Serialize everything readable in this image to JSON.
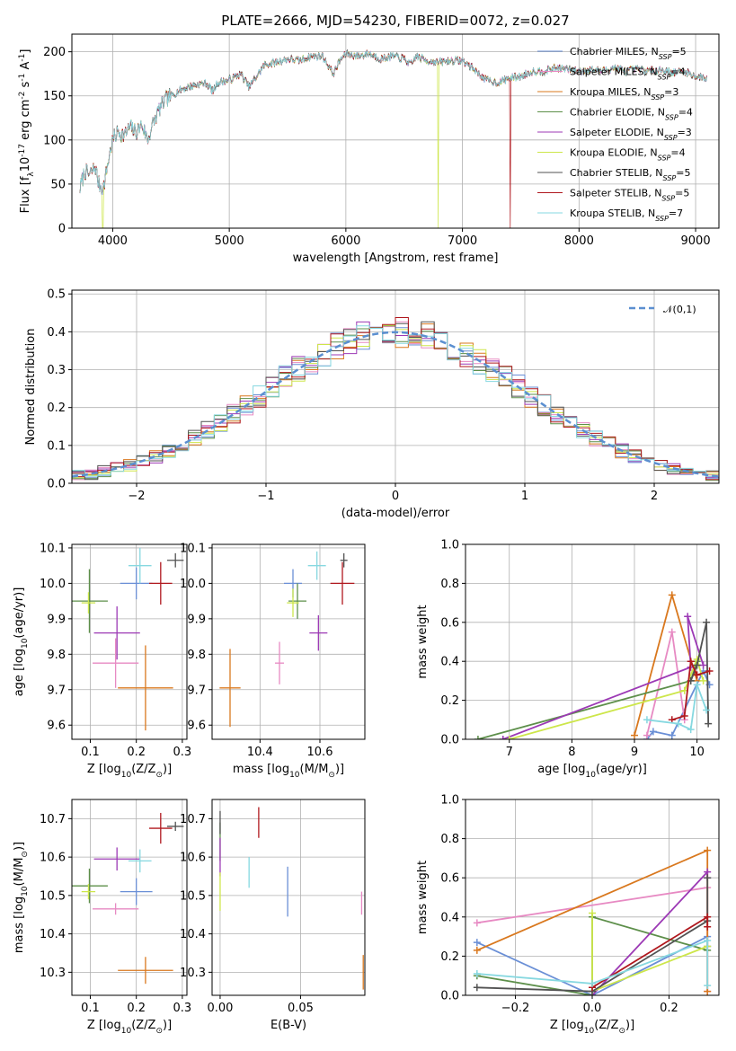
{
  "figure": {
    "title": "PLATE=2666, MJD=54230, FIBERID=0072, z=0.027"
  },
  "colors": {
    "Chabrier MILES": "#6a8fd6",
    "Salpeter MILES": "#e78ac3",
    "Kroupa MILES": "#d9781e",
    "Chabrier ELODIE": "#5d8f4a",
    "Salpeter ELODIE": "#9c39b5",
    "Kroupa ELODIE": "#cde64a",
    "Chabrier STELIB": "#525252",
    "Salpeter STELIB": "#b0181e",
    "Kroupa STELIB": "#86d8e0"
  },
  "chart_data": [
    {
      "id": "spectrum",
      "type": "line",
      "xlabel": "wavelength [Angstrom, rest frame]",
      "ylabel": "Flux [f$_\\lambda$10$^{-17}$ erg cm$^{-2}$ s$^{-1}$ A$^{-1}$]",
      "xlim": [
        3650,
        9200
      ],
      "ylim": [
        0,
        220
      ],
      "xticks": [
        "4000",
        "5000",
        "6000",
        "7000",
        "8000",
        "9000"
      ],
      "yticks": [
        "0",
        "50",
        "100",
        "150",
        "200"
      ],
      "legend_position": "top-right",
      "legend": [
        {
          "name": "Chabrier MILES",
          "nssp": "5"
        },
        {
          "name": "Salpeter MILES",
          "nssp": "4"
        },
        {
          "name": "Kroupa MILES",
          "nssp": "3"
        },
        {
          "name": "Chabrier ELODIE",
          "nssp": "4"
        },
        {
          "name": "Salpeter ELODIE",
          "nssp": "3"
        },
        {
          "name": "Kroupa ELODIE",
          "nssp": "4"
        },
        {
          "name": "Chabrier STELIB",
          "nssp": "5"
        },
        {
          "name": "Salpeter STELIB",
          "nssp": "5"
        },
        {
          "name": "Kroupa STELIB",
          "nssp": "7"
        }
      ],
      "continuum": [
        [
          3720,
          45
        ],
        [
          3760,
          65
        ],
        [
          3800,
          60
        ],
        [
          3850,
          70
        ],
        [
          3880,
          50
        ],
        [
          3920,
          45
        ],
        [
          3960,
          75
        ],
        [
          4000,
          100
        ],
        [
          4050,
          110
        ],
        [
          4100,
          105
        ],
        [
          4150,
          115
        ],
        [
          4200,
          108
        ],
        [
          4250,
          118
        ],
        [
          4300,
          100
        ],
        [
          4350,
          120
        ],
        [
          4400,
          135
        ],
        [
          4450,
          145
        ],
        [
          4500,
          150
        ],
        [
          4600,
          158
        ],
        [
          4700,
          162
        ],
        [
          4800,
          165
        ],
        [
          4860,
          155
        ],
        [
          4900,
          165
        ],
        [
          5000,
          168
        ],
        [
          5100,
          175
        ],
        [
          5170,
          160
        ],
        [
          5250,
          175
        ],
        [
          5300,
          185
        ],
        [
          5400,
          188
        ],
        [
          5500,
          192
        ],
        [
          5600,
          190
        ],
        [
          5700,
          195
        ],
        [
          5800,
          195
        ],
        [
          5893,
          175
        ],
        [
          5950,
          190
        ],
        [
          6000,
          198
        ],
        [
          6100,
          195
        ],
        [
          6200,
          198
        ],
        [
          6300,
          192
        ],
        [
          6400,
          195
        ],
        [
          6500,
          192
        ],
        [
          6563,
          185
        ],
        [
          6600,
          195
        ],
        [
          6700,
          190
        ],
        [
          6800,
          188
        ],
        [
          6900,
          190
        ],
        [
          7000,
          190
        ],
        [
          7100,
          180
        ],
        [
          7200,
          168
        ],
        [
          7300,
          165
        ],
        [
          7400,
          170
        ],
        [
          7500,
          172
        ],
        [
          7600,
          178
        ],
        [
          7700,
          178
        ],
        [
          7800,
          182
        ],
        [
          7900,
          180
        ],
        [
          8000,
          178
        ],
        [
          8100,
          180
        ],
        [
          8200,
          178
        ],
        [
          8300,
          182
        ],
        [
          8400,
          178
        ],
        [
          8500,
          180
        ],
        [
          8600,
          178
        ],
        [
          8700,
          180
        ],
        [
          8800,
          176
        ],
        [
          8900,
          178
        ],
        [
          9000,
          172
        ],
        [
          9100,
          170
        ]
      ],
      "dropouts": [
        {
          "x": 3915,
          "series": "Kroupa ELODIE"
        },
        {
          "x": 6790,
          "series": "Kroupa ELODIE"
        },
        {
          "x": 7410,
          "series": "Salpeter STELIB"
        }
      ]
    },
    {
      "id": "residuals",
      "type": "bar",
      "xlabel": "(data-model)/error",
      "ylabel": "Normed distribution",
      "xlim": [
        -2.5,
        2.5
      ],
      "ylim": [
        0,
        0.51
      ],
      "xticks": [
        "−2",
        "−1",
        "0",
        "1",
        "2"
      ],
      "yticks": [
        "0.0",
        "0.1",
        "0.2",
        "0.3",
        "0.4",
        "0.5"
      ],
      "legend_position": "top-right",
      "reference": {
        "name": "𝒩(0,1)",
        "mu": 0,
        "sigma": 1
      },
      "bin_width": 0.1
    },
    {
      "id": "Z_age",
      "type": "scatter",
      "xlabel": "Z [log$_{10}$(Z/Z$_\\odot$)]",
      "ylabel": "age  [log$_{10}$(age/yr)]",
      "xlim": [
        0.06,
        0.31
      ],
      "ylim": [
        9.56,
        10.11
      ],
      "xticks": [
        "0.1",
        "0.2",
        "0.3"
      ],
      "yticks": [
        "9.6",
        "9.7",
        "9.8",
        "9.9",
        "10.0",
        "10.1"
      ],
      "points": [
        {
          "s": "Chabrier MILES",
          "x": 0.2,
          "xerr": 0.035,
          "y": 10.0,
          "yerr": 0.045
        },
        {
          "s": "Salpeter MILES",
          "x": 0.155,
          "xerr": 0.05,
          "y": 9.775,
          "yerr": 0.07
        },
        {
          "s": "Kroupa MILES",
          "x": 0.22,
          "xerr": 0.06,
          "y": 9.705,
          "yerr": 0.12
        },
        {
          "s": "Chabrier ELODIE",
          "x": 0.098,
          "xerr": 0.04,
          "y": 9.95,
          "yerr": 0.09
        },
        {
          "s": "Salpeter ELODIE",
          "x": 0.158,
          "xerr": 0.05,
          "y": 9.86,
          "yerr": 0.075
        },
        {
          "s": "Kroupa ELODIE",
          "x": 0.096,
          "xerr": 0.015,
          "y": 9.945,
          "yerr": 0.03
        },
        {
          "s": "Chabrier STELIB",
          "x": 0.285,
          "xerr": 0.018,
          "y": 10.065,
          "yerr": 0.02
        },
        {
          "s": "Salpeter STELIB",
          "x": 0.253,
          "xerr": 0.025,
          "y": 10.0,
          "yerr": 0.06
        },
        {
          "s": "Kroupa STELIB",
          "x": 0.208,
          "xerr": 0.025,
          "y": 10.05,
          "yerr": 0.05
        }
      ]
    },
    {
      "id": "mass_age",
      "type": "scatter",
      "xlabel": "mass [log$_{10}$(M/M$_\\odot$)]",
      "ylabel": "",
      "xlim": [
        10.24,
        10.75
      ],
      "ylim": [
        9.56,
        10.11
      ],
      "xticks": [
        "10.4",
        "10.6"
      ],
      "yticks": [
        "9.6",
        "9.7",
        "9.8",
        "9.9",
        "10.0",
        "10.1"
      ],
      "points": [
        {
          "s": "Chabrier MILES",
          "x": 10.51,
          "xerr": 0.03,
          "y": 10.0,
          "yerr": 0.04
        },
        {
          "s": "Salpeter MILES",
          "x": 10.465,
          "xerr": 0.015,
          "y": 9.775,
          "yerr": 0.06
        },
        {
          "s": "Kroupa MILES",
          "x": 10.3,
          "xerr": 0.035,
          "y": 9.705,
          "yerr": 0.11
        },
        {
          "s": "Chabrier ELODIE",
          "x": 10.525,
          "xerr": 0.03,
          "y": 9.95,
          "yerr": 0.05
        },
        {
          "s": "Salpeter ELODIE",
          "x": 10.595,
          "xerr": 0.03,
          "y": 9.86,
          "yerr": 0.05
        },
        {
          "s": "Kroupa ELODIE",
          "x": 10.51,
          "xerr": 0.02,
          "y": 9.945,
          "yerr": 0.04
        },
        {
          "s": "Chabrier STELIB",
          "x": 10.68,
          "xerr": 0.012,
          "y": 10.065,
          "yerr": 0.02
        },
        {
          "s": "Salpeter STELIB",
          "x": 10.675,
          "xerr": 0.04,
          "y": 10.0,
          "yerr": 0.06
        },
        {
          "s": "Kroupa STELIB",
          "x": 10.59,
          "xerr": 0.03,
          "y": 10.05,
          "yerr": 0.04
        }
      ]
    },
    {
      "id": "age_weight",
      "type": "line",
      "xlabel": "age  [log$_{10}$(age/yr)]",
      "ylabel": "mass weight",
      "xlim": [
        6.3,
        10.35
      ],
      "ylim": [
        0,
        1.0
      ],
      "xticks": [
        "7",
        "8",
        "9",
        "10"
      ],
      "yticks": [
        "0.0",
        "0.2",
        "0.4",
        "0.6",
        "0.8",
        "1.0"
      ],
      "series": [
        {
          "name": "Chabrier MILES",
          "x": [
            9.2,
            9.3,
            9.6,
            10.1,
            10.2
          ],
          "y": [
            0.0,
            0.04,
            0.02,
            0.35,
            0.28
          ]
        },
        {
          "name": "Salpeter MILES",
          "x": [
            9.2,
            9.6,
            9.8
          ],
          "y": [
            0.02,
            0.55,
            0.1
          ]
        },
        {
          "name": "Kroupa MILES",
          "x": [
            9.0,
            9.6,
            10.0
          ],
          "y": [
            0.02,
            0.74,
            0.3
          ]
        },
        {
          "name": "Chabrier ELODIE",
          "x": [
            6.5,
            9.9,
            10.0
          ],
          "y": [
            0.0,
            0.3,
            0.4
          ]
        },
        {
          "name": "Salpeter ELODIE",
          "x": [
            6.9,
            9.9,
            9.85,
            10.1
          ],
          "y": [
            0.0,
            0.37,
            0.63,
            0.38
          ]
        },
        {
          "name": "Kroupa ELODIE",
          "x": [
            7.0,
            9.8,
            10.0,
            10.1
          ],
          "y": [
            0.0,
            0.25,
            0.41,
            0.3
          ]
        },
        {
          "name": "Chabrier STELIB",
          "x": [
            9.9,
            10.0,
            10.15,
            10.18
          ],
          "y": [
            0.3,
            0.38,
            0.6,
            0.08
          ]
        },
        {
          "name": "Salpeter STELIB",
          "x": [
            9.6,
            9.8,
            9.9,
            10.0,
            10.2
          ],
          "y": [
            0.1,
            0.12,
            0.4,
            0.33,
            0.35
          ]
        },
        {
          "name": "Kroupa STELIB",
          "x": [
            9.2,
            9.7,
            9.9,
            10.0,
            10.15
          ],
          "y": [
            0.1,
            0.08,
            0.05,
            0.28,
            0.15
          ]
        }
      ]
    },
    {
      "id": "Z_mass",
      "type": "scatter",
      "xlabel": "Z [log$_{10}$(Z/Z$_\\odot$)]",
      "ylabel": "mass [log$_{10}$(M/M$_\\odot$)]",
      "xlim": [
        0.06,
        0.31
      ],
      "ylim": [
        10.24,
        10.75
      ],
      "xticks": [
        "0.1",
        "0.2",
        "0.3"
      ],
      "yticks": [
        "10.3",
        "10.4",
        "10.5",
        "10.6",
        "10.7"
      ],
      "points": [
        {
          "s": "Chabrier MILES",
          "x": 0.2,
          "xerr": 0.035,
          "y": 10.51,
          "yerr": 0.035
        },
        {
          "s": "Salpeter MILES",
          "x": 0.155,
          "xerr": 0.05,
          "y": 10.465,
          "yerr": 0.015
        },
        {
          "s": "Kroupa MILES",
          "x": 0.22,
          "xerr": 0.06,
          "y": 10.305,
          "yerr": 0.035
        },
        {
          "s": "Chabrier ELODIE",
          "x": 0.098,
          "xerr": 0.04,
          "y": 10.525,
          "yerr": 0.045
        },
        {
          "s": "Salpeter ELODIE",
          "x": 0.158,
          "xerr": 0.05,
          "y": 10.595,
          "yerr": 0.03
        },
        {
          "s": "Kroupa ELODIE",
          "x": 0.096,
          "xerr": 0.015,
          "y": 10.51,
          "yerr": 0.02
        },
        {
          "s": "Chabrier STELIB",
          "x": 0.285,
          "xerr": 0.018,
          "y": 10.68,
          "yerr": 0.012
        },
        {
          "s": "Salpeter STELIB",
          "x": 0.253,
          "xerr": 0.025,
          "y": 10.675,
          "yerr": 0.04
        },
        {
          "s": "Kroupa STELIB",
          "x": 0.208,
          "xerr": 0.025,
          "y": 10.59,
          "yerr": 0.03
        }
      ]
    },
    {
      "id": "ebv_mass",
      "type": "scatter",
      "xlabel": "E(B-V)",
      "ylabel": "",
      "xlim": [
        -0.005,
        0.09
      ],
      "ylim": [
        10.24,
        10.75
      ],
      "xticks": [
        "0.00",
        "0.05"
      ],
      "yticks": [
        "10.3",
        "10.4",
        "10.5",
        "10.6",
        "10.7"
      ],
      "points": [
        {
          "s": "Chabrier MILES",
          "x": 0.042,
          "xerr": 0,
          "y": 10.51,
          "yerr": 0.065
        },
        {
          "s": "Salpeter MILES",
          "x": 0.088,
          "xerr": 0,
          "y": 10.48,
          "yerr": 0.03
        },
        {
          "s": "Kroupa MILES",
          "x": 0.089,
          "xerr": 0,
          "y": 10.3,
          "yerr": 0.045
        },
        {
          "s": "Chabrier ELODIE",
          "x": 0.0,
          "xerr": 0,
          "y": 10.64,
          "yerr": 0.05
        },
        {
          "s": "Salpeter ELODIE",
          "x": 0.0,
          "xerr": 0,
          "y": 10.6,
          "yerr": 0.05
        },
        {
          "s": "Kroupa ELODIE",
          "x": 0.0,
          "xerr": 0,
          "y": 10.51,
          "yerr": 0.05
        },
        {
          "s": "Chabrier STELIB",
          "x": 0.0,
          "xerr": 0,
          "y": 10.69,
          "yerr": 0.03
        },
        {
          "s": "Salpeter STELIB",
          "x": 0.024,
          "xerr": 0,
          "y": 10.69,
          "yerr": 0.04
        },
        {
          "s": "Kroupa STELIB",
          "x": 0.018,
          "xerr": 0,
          "y": 10.56,
          "yerr": 0.04
        }
      ]
    },
    {
      "id": "Z_weight",
      "type": "line",
      "xlabel": "Z [log$_{10}$(Z/Z$_\\odot$)]",
      "ylabel": "mass weight",
      "xlim": [
        -0.33,
        0.33
      ],
      "ylim": [
        0,
        1.0
      ],
      "xticks": [
        "−0.2",
        "0.0",
        "0.2"
      ],
      "yticks": [
        "0.0",
        "0.2",
        "0.4",
        "0.6",
        "0.8",
        "1.0"
      ],
      "series": [
        {
          "name": "Chabrier MILES",
          "x": [
            -0.3,
            0.0,
            0.3,
            0.3
          ],
          "y": [
            0.27,
            0.0,
            0.3,
            0.25
          ]
        },
        {
          "name": "Salpeter MILES",
          "x": [
            -0.3,
            0.3,
            0.3
          ],
          "y": [
            0.37,
            0.55,
            0.02
          ]
        },
        {
          "name": "Kroupa MILES",
          "x": [
            -0.3,
            0.3,
            0.3
          ],
          "y": [
            0.23,
            0.74,
            0.02
          ]
        },
        {
          "name": "Chabrier ELODIE",
          "x": [
            -0.3,
            0.0,
            0.0,
            0.3
          ],
          "y": [
            0.1,
            0.0,
            0.4,
            0.23
          ]
        },
        {
          "name": "Salpeter ELODIE",
          "x": [
            0.0,
            0.3,
            0.3
          ],
          "y": [
            0.0,
            0.63,
            0.6
          ]
        },
        {
          "name": "Kroupa ELODIE",
          "x": [
            0.0,
            0.0,
            0.3
          ],
          "y": [
            0.42,
            0.02,
            0.25
          ]
        },
        {
          "name": "Chabrier STELIB",
          "x": [
            -0.3,
            0.0,
            0.3,
            0.3
          ],
          "y": [
            0.04,
            0.02,
            0.38,
            0.6
          ]
        },
        {
          "name": "Salpeter STELIB",
          "x": [
            0.0,
            0.3,
            0.3
          ],
          "y": [
            0.04,
            0.4,
            0.35
          ]
        },
        {
          "name": "Kroupa STELIB",
          "x": [
            -0.3,
            0.0,
            0.3,
            0.3
          ],
          "y": [
            0.11,
            0.06,
            0.28,
            0.05
          ]
        }
      ]
    }
  ]
}
